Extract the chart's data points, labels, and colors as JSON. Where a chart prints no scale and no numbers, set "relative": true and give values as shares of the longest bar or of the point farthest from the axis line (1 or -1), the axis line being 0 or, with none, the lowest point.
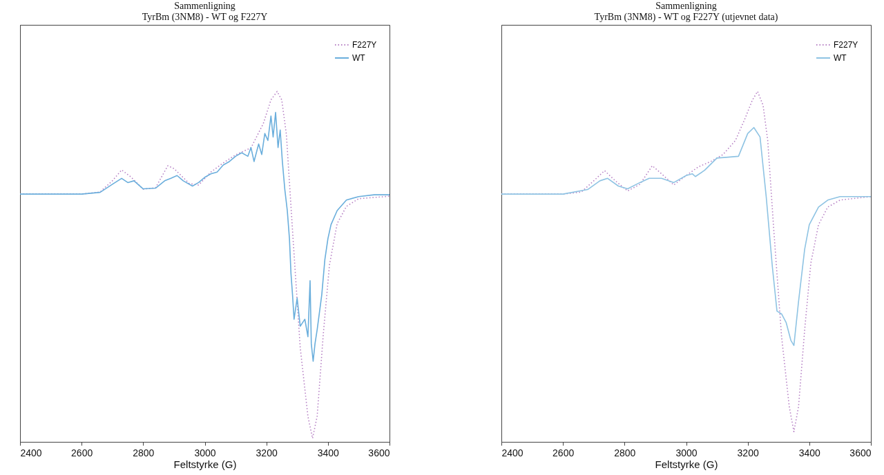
{
  "chart_data": [
    {
      "type": "line",
      "title": "Sammenligning",
      "subtitle": "TyrBm (3NM8) - WT og F227Y",
      "xlabel": "Feltstyrke (G)",
      "xlim": [
        2400,
        3600
      ],
      "xticks": [
        2400,
        2600,
        2800,
        3000,
        3200,
        3400,
        3600
      ],
      "relative": true,
      "legend": "top right",
      "grid": false,
      "series": [
        {
          "name": "F227Y",
          "color": "#b57fc4",
          "line_style": "dotted",
          "x": [
            2400,
            2600,
            2660,
            2700,
            2730,
            2760,
            2800,
            2840,
            2880,
            2900,
            2950,
            2980,
            3020,
            3060,
            3100,
            3150,
            3190,
            3215,
            3235,
            3250,
            3265,
            3285,
            3310,
            3335,
            3350,
            3365,
            3385,
            3405,
            3430,
            3460,
            3500,
            3600
          ],
          "values": [
            0.707,
            0.707,
            0.713,
            0.745,
            0.776,
            0.756,
            0.721,
            0.725,
            0.788,
            0.78,
            0.737,
            0.733,
            0.77,
            0.796,
            0.819,
            0.839,
            0.908,
            0.976,
            1,
            0.976,
            0.878,
            0.603,
            0.269,
            0.073,
            0.01,
            0.073,
            0.308,
            0.505,
            0.623,
            0.672,
            0.694,
            0.701
          ]
        },
        {
          "name": "WT",
          "color": "#6aaedc",
          "line_style": "solid",
          "x": [
            2400,
            2600,
            2660,
            2700,
            2730,
            2750,
            2770,
            2800,
            2840,
            2870,
            2890,
            2910,
            2930,
            2960,
            2980,
            3000,
            3020,
            3040,
            3060,
            3080,
            3100,
            3120,
            3140,
            3150,
            3160,
            3175,
            3185,
            3195,
            3205,
            3215,
            3222,
            3230,
            3238,
            3245,
            3252,
            3260,
            3268,
            3275,
            3280,
            3285,
            3290,
            3300,
            3310,
            3325,
            3335,
            3342,
            3346,
            3352,
            3358,
            3365,
            3380,
            3390,
            3400,
            3410,
            3430,
            3460,
            3500,
            3550,
            3600
          ],
          "values": [
            0.707,
            0.707,
            0.712,
            0.735,
            0.752,
            0.74,
            0.745,
            0.722,
            0.724,
            0.745,
            0.752,
            0.76,
            0.745,
            0.73,
            0.74,
            0.755,
            0.765,
            0.77,
            0.79,
            0.8,
            0.815,
            0.825,
            0.815,
            0.84,
            0.8,
            0.85,
            0.82,
            0.88,
            0.86,
            0.93,
            0.87,
            0.94,
            0.84,
            0.89,
            0.8,
            0.72,
            0.66,
            0.58,
            0.48,
            0.42,
            0.35,
            0.41,
            0.33,
            0.35,
            0.3,
            0.46,
            0.28,
            0.23,
            0.28,
            0.32,
            0.42,
            0.52,
            0.58,
            0.62,
            0.66,
            0.69,
            0.7,
            0.705,
            0.705
          ]
        }
      ]
    },
    {
      "type": "line",
      "title": "Sammenligning",
      "subtitle": "TyrBm (3NM8) - WT og F227Y (utjevnet data)",
      "xlabel": "Feltstyrke (G)",
      "xlim": [
        2400,
        3600
      ],
      "xticks": [
        2400,
        2600,
        2800,
        3000,
        3200,
        3400,
        3600
      ],
      "relative": true,
      "legend": "top right",
      "grid": false,
      "series": [
        {
          "name": "F227Y",
          "color": "#b57fc4",
          "line_style": "dotted",
          "x": [
            2400,
            2600,
            2660,
            2700,
            2735,
            2770,
            2810,
            2850,
            2890,
            2920,
            2960,
            3000,
            3040,
            3080,
            3120,
            3160,
            3190,
            3215,
            3232,
            3250,
            3265,
            3285,
            3310,
            3335,
            3350,
            3365,
            3385,
            3405,
            3430,
            3460,
            3500,
            3600
          ],
          "values": [
            0.707,
            0.707,
            0.713,
            0.745,
            0.774,
            0.745,
            0.716,
            0.735,
            0.788,
            0.765,
            0.733,
            0.76,
            0.785,
            0.8,
            0.82,
            0.86,
            0.92,
            0.975,
            1,
            0.96,
            0.86,
            0.6,
            0.3,
            0.1,
            0.029,
            0.1,
            0.32,
            0.51,
            0.62,
            0.67,
            0.69,
            0.7
          ]
        },
        {
          "name": "WT",
          "color": "#8ec3e3",
          "line_style": "solid",
          "x": [
            2400,
            2600,
            2680,
            2720,
            2745,
            2780,
            2810,
            2850,
            2880,
            2920,
            2960,
            3000,
            3020,
            3030,
            3060,
            3100,
            3130,
            3170,
            3200,
            3220,
            3240,
            3260,
            3280,
            3295,
            3310,
            3325,
            3340,
            3350,
            3365,
            3385,
            3400,
            3430,
            3460,
            3500,
            3600
          ],
          "values": [
            0.707,
            0.707,
            0.72,
            0.745,
            0.752,
            0.73,
            0.722,
            0.74,
            0.752,
            0.752,
            0.74,
            0.76,
            0.765,
            0.757,
            0.775,
            0.81,
            0.812,
            0.815,
            0.88,
            0.897,
            0.87,
            0.7,
            0.5,
            0.373,
            0.365,
            0.34,
            0.29,
            0.275,
            0.4,
            0.55,
            0.62,
            0.67,
            0.69,
            0.7,
            0.7
          ]
        }
      ]
    }
  ]
}
